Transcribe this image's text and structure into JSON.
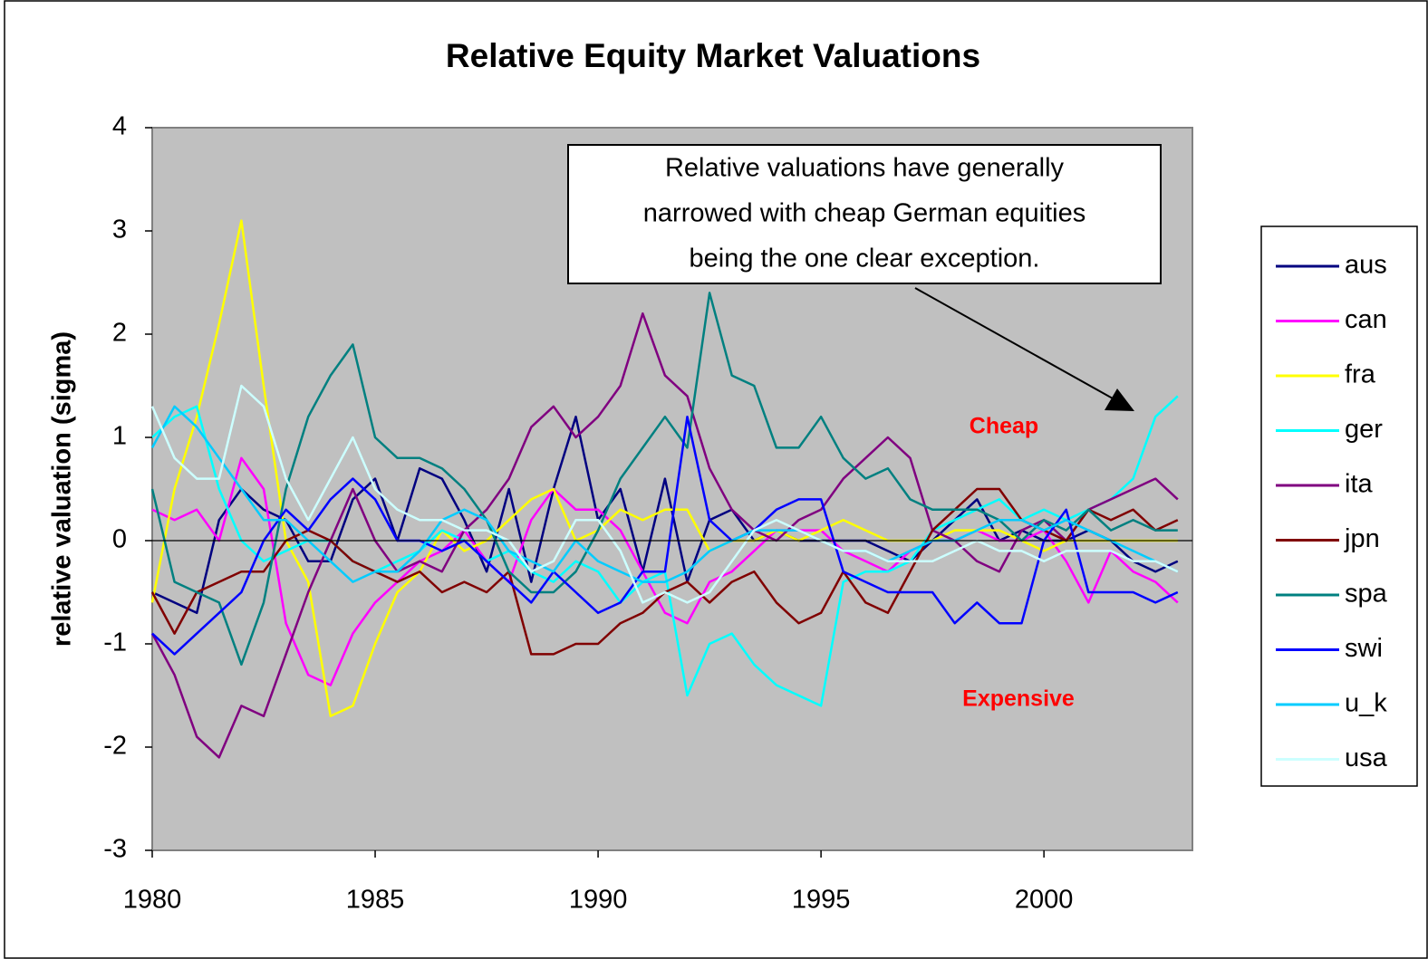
{
  "chart_data": {
    "type": "line",
    "title": "Relative Equity Market Valuations",
    "y_label": "relative valuation (sigma)",
    "annotation": [
      "Relative valuations have generally",
      "narrowed with cheap German equities",
      "being the one clear exception."
    ],
    "cheap_label": "Cheap",
    "expensive_label": "Expensive",
    "xlim": [
      1980,
      2003.33
    ],
    "xticks": [
      1980,
      1985,
      1990,
      1995,
      2000
    ],
    "ylim": [
      -3,
      4
    ],
    "yticks": [
      -3,
      -2,
      -1,
      0,
      1,
      2,
      3,
      4
    ],
    "legend": "right",
    "x": [
      1980,
      1980.5,
      1981,
      1981.5,
      1982,
      1982.5,
      1983,
      1983.5,
      1984,
      1984.5,
      1985,
      1985.5,
      1986,
      1986.5,
      1987,
      1987.5,
      1988,
      1988.5,
      1989,
      1989.5,
      1990,
      1990.5,
      1991,
      1991.5,
      1992,
      1992.5,
      1993,
      1993.5,
      1994,
      1994.5,
      1995,
      1995.5,
      1996,
      1996.5,
      1997,
      1997.5,
      1998,
      1998.5,
      1999,
      1999.5,
      2000,
      2000.5,
      2001,
      2001.5,
      2002,
      2002.5,
      2003
    ],
    "series": [
      {
        "name": "aus",
        "color": "#000080",
        "values": [
          -0.5,
          -0.6,
          -0.7,
          0.2,
          0.5,
          0.3,
          0.2,
          -0.2,
          -0.2,
          0.4,
          0.6,
          0.0,
          0.7,
          0.6,
          0.2,
          -0.3,
          0.5,
          -0.4,
          0.5,
          1.2,
          0.2,
          0.5,
          -0.3,
          0.6,
          -0.4,
          0.2,
          0.3,
          0.0,
          0.1,
          0.0,
          0.0,
          0.0,
          0.0,
          -0.1,
          -0.2,
          0.0,
          0.2,
          0.4,
          0.0,
          0.1,
          0.0,
          0.0,
          0.1,
          0.0,
          -0.2,
          -0.3,
          -0.2
        ]
      },
      {
        "name": "can",
        "color": "#ff00ff",
        "values": [
          0.3,
          0.2,
          0.3,
          0.0,
          0.8,
          0.5,
          -0.8,
          -1.3,
          -1.4,
          -0.9,
          -0.6,
          -0.4,
          -0.2,
          -0.1,
          0.1,
          -0.2,
          -0.4,
          0.2,
          0.5,
          0.3,
          0.3,
          0.1,
          -0.3,
          -0.7,
          -0.8,
          -0.4,
          -0.3,
          -0.1,
          0.1,
          0.1,
          0.1,
          -0.1,
          -0.2,
          -0.3,
          -0.1,
          0.0,
          0.0,
          0.1,
          0.0,
          0.0,
          0.1,
          -0.2,
          -0.6,
          -0.1,
          -0.3,
          -0.4,
          -0.6
        ]
      },
      {
        "name": "fra",
        "color": "#ffff00",
        "values": [
          -0.6,
          0.5,
          1.2,
          2.1,
          3.1,
          1.5,
          0.0,
          -0.4,
          -1.7,
          -1.6,
          -1.0,
          -0.5,
          -0.3,
          0.1,
          -0.1,
          0.0,
          0.2,
          0.4,
          0.5,
          0.0,
          0.1,
          0.3,
          0.2,
          0.3,
          0.3,
          -0.1,
          0.0,
          0.0,
          0.1,
          0.0,
          0.1,
          0.2,
          0.1,
          0.0,
          0.0,
          0.0,
          0.1,
          0.1,
          0.1,
          0.0,
          -0.1,
          0.0,
          0.0,
          0.0,
          0.0,
          0.0,
          0.0
        ]
      },
      {
        "name": "ger",
        "color": "#00ffff",
        "values": [
          1.0,
          1.2,
          1.3,
          0.5,
          0.0,
          -0.2,
          -0.1,
          0.0,
          0.0,
          -0.2,
          -0.3,
          -0.2,
          -0.1,
          0.1,
          0.0,
          -0.2,
          -0.1,
          -0.3,
          -0.4,
          -0.2,
          -0.3,
          -0.6,
          -0.4,
          -0.3,
          -1.5,
          -1.0,
          -0.9,
          -1.2,
          -1.4,
          -1.5,
          -1.6,
          -0.4,
          -0.3,
          -0.3,
          -0.2,
          0.1,
          0.2,
          0.3,
          0.4,
          0.2,
          0.3,
          0.2,
          0.3,
          0.4,
          0.6,
          1.2,
          1.4
        ]
      },
      {
        "name": "ita",
        "color": "#800080",
        "values": [
          -0.9,
          -1.3,
          -1.9,
          -2.1,
          -1.6,
          -1.7,
          -1.1,
          -0.5,
          0.0,
          0.5,
          0.0,
          -0.3,
          -0.2,
          -0.3,
          0.1,
          0.3,
          0.6,
          1.1,
          1.3,
          1.0,
          1.2,
          1.5,
          2.2,
          1.6,
          1.4,
          0.7,
          0.3,
          0.1,
          0.0,
          0.2,
          0.3,
          0.6,
          0.8,
          1.0,
          0.8,
          0.1,
          0.0,
          -0.2,
          -0.3,
          0.1,
          0.2,
          0.0,
          0.3,
          0.4,
          0.5,
          0.6,
          0.4
        ]
      },
      {
        "name": "jpn",
        "color": "#800000",
        "values": [
          -0.5,
          -0.9,
          -0.5,
          -0.4,
          -0.3,
          -0.3,
          0.0,
          0.1,
          0.0,
          -0.2,
          -0.3,
          -0.4,
          -0.3,
          -0.5,
          -0.4,
          -0.5,
          -0.3,
          -1.1,
          -1.1,
          -1.0,
          -1.0,
          -0.8,
          -0.7,
          -0.5,
          -0.4,
          -0.6,
          -0.4,
          -0.3,
          -0.6,
          -0.8,
          -0.7,
          -0.3,
          -0.6,
          -0.7,
          -0.3,
          0.1,
          0.3,
          0.5,
          0.5,
          0.2,
          0.1,
          0.0,
          0.3,
          0.2,
          0.3,
          0.1,
          0.2
        ]
      },
      {
        "name": "spa",
        "color": "#008080",
        "values": [
          0.5,
          -0.4,
          -0.5,
          -0.6,
          -1.2,
          -0.6,
          0.5,
          1.2,
          1.6,
          1.9,
          1.0,
          0.8,
          0.8,
          0.7,
          0.5,
          0.2,
          -0.3,
          -0.5,
          -0.5,
          -0.3,
          0.1,
          0.6,
          0.9,
          1.2,
          0.9,
          2.4,
          1.6,
          1.5,
          0.9,
          0.9,
          1.2,
          0.8,
          0.6,
          0.7,
          0.4,
          0.3,
          0.3,
          0.3,
          0.2,
          0.0,
          0.2,
          0.1,
          0.3,
          0.1,
          0.2,
          0.1,
          0.1
        ]
      },
      {
        "name": "swi",
        "color": "#0000ff",
        "values": [
          -0.9,
          -1.1,
          -0.9,
          -0.7,
          -0.5,
          0.0,
          0.3,
          0.1,
          0.4,
          0.6,
          0.4,
          0.0,
          0.0,
          -0.1,
          0.0,
          -0.2,
          -0.4,
          -0.6,
          -0.3,
          -0.5,
          -0.7,
          -0.6,
          -0.3,
          -0.3,
          1.2,
          0.2,
          0.0,
          0.1,
          0.3,
          0.4,
          0.4,
          -0.3,
          -0.4,
          -0.5,
          -0.5,
          -0.5,
          -0.8,
          -0.6,
          -0.8,
          -0.8,
          0.0,
          0.3,
          -0.5,
          -0.5,
          -0.5,
          -0.6,
          -0.5
        ]
      },
      {
        "name": "u_k",
        "color": "#00ccff",
        "values": [
          0.9,
          1.3,
          1.1,
          0.8,
          0.5,
          0.2,
          0.2,
          0.0,
          -0.2,
          -0.4,
          -0.3,
          -0.3,
          -0.1,
          0.2,
          0.3,
          0.2,
          -0.1,
          -0.2,
          -0.3,
          0.0,
          -0.2,
          -0.3,
          -0.4,
          -0.4,
          -0.3,
          -0.1,
          0.0,
          0.1,
          0.1,
          0.1,
          0.0,
          -0.1,
          -0.1,
          -0.2,
          -0.1,
          0.0,
          0.0,
          0.1,
          0.2,
          0.2,
          0.1,
          0.2,
          0.1,
          0.0,
          -0.1,
          -0.2,
          -0.3
        ]
      },
      {
        "name": "usa",
        "color": "#ccffff",
        "values": [
          1.3,
          0.8,
          0.6,
          0.6,
          1.5,
          1.3,
          0.6,
          0.2,
          0.6,
          1.0,
          0.5,
          0.3,
          0.2,
          0.2,
          0.1,
          0.1,
          0.0,
          -0.3,
          -0.2,
          0.2,
          0.2,
          -0.1,
          -0.6,
          -0.5,
          -0.6,
          -0.5,
          -0.2,
          0.1,
          0.2,
          0.1,
          0.0,
          -0.1,
          -0.1,
          -0.2,
          -0.2,
          -0.2,
          -0.1,
          0.0,
          -0.1,
          -0.1,
          -0.2,
          -0.1,
          -0.1,
          -0.1,
          -0.2,
          -0.2,
          -0.3
        ]
      }
    ]
  }
}
